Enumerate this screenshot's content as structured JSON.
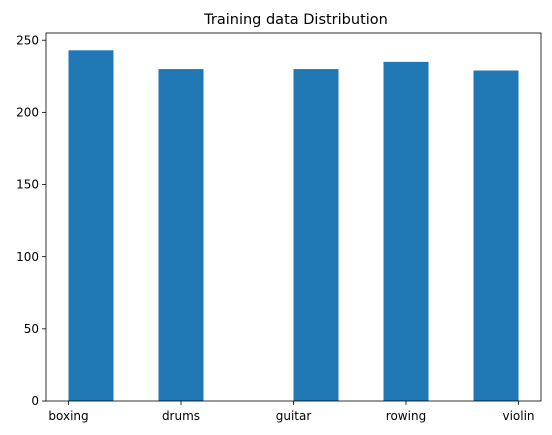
{
  "chart_data": {
    "type": "bar",
    "title": "Training data Distribution",
    "xlabel": "",
    "ylabel": "",
    "x_tick_labels": [
      "boxing",
      "drums",
      "guitar",
      "rowing",
      "violin"
    ],
    "y_ticks": [
      0,
      50,
      100,
      150,
      200,
      250
    ],
    "ylim": [
      0,
      255
    ],
    "xlim": [
      -0.2,
      4.2
    ],
    "bar_color": "#1f77b4",
    "grid": false,
    "legend": "none",
    "bars": [
      {
        "x_start": 0.0,
        "x_end": 0.4,
        "value": 243
      },
      {
        "x_start": 0.8,
        "x_end": 1.2,
        "value": 230
      },
      {
        "x_start": 2.0,
        "x_end": 2.4,
        "value": 230
      },
      {
        "x_start": 2.8,
        "x_end": 3.2,
        "value": 235
      },
      {
        "x_start": 3.6,
        "x_end": 4.0,
        "value": 229
      }
    ],
    "x_tick_positions": [
      0.0,
      1.0,
      2.0,
      3.0,
      4.0
    ]
  }
}
